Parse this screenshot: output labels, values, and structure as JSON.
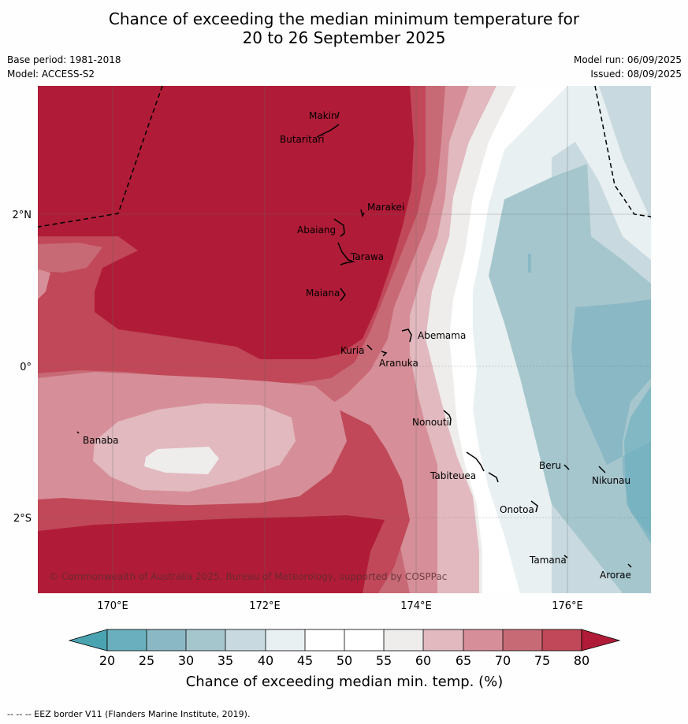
{
  "title": {
    "line1": "Chance of exceeding the median minimum temperature for",
    "line2": "20 to 26 September 2025"
  },
  "meta": {
    "base_period": "Base period: 1981-2018",
    "model": "Model: ACCESS-S2",
    "model_run": "Model run: 06/09/2025",
    "issued": "Issued: 08/09/2025"
  },
  "axes": {
    "lat_labels": [
      "2°N",
      "0°",
      "2°S"
    ],
    "lon_labels": [
      "170°E",
      "172°E",
      "174°E",
      "176°E"
    ]
  },
  "places": [
    "Makin",
    "Butaritari",
    "Marakei",
    "Abaiang",
    "Tarawa",
    "Maiana",
    "Abemama",
    "Kuria",
    "Aranuka",
    "Banaba",
    "Nonouti",
    "Tabiteuea",
    "Beru",
    "Nikunau",
    "Onotoa",
    "Tamana",
    "Arorae"
  ],
  "copyright": "© Commonwealth of Australia 2025, Bureau of Meteorology, supported by COSPPac",
  "colorbar": {
    "ticks": [
      "20",
      "25",
      "30",
      "35",
      "40",
      "45",
      "50",
      "55",
      "60",
      "65",
      "70",
      "75",
      "80"
    ],
    "colors": {
      "below_20": "#4aa3b0",
      "20_25": "#6aafbd",
      "25_30": "#8ab8c5",
      "30_35": "#a6c6cd",
      "35_40": "#c8dadf",
      "40_45": "#e9f0f2",
      "45_50": "#ffffff",
      "50_55": "#ffffff",
      "55_60": "#efecec",
      "60_65": "#e1b9bf",
      "65_70": "#d68f98",
      "70_75": "#c86a76",
      "75_80": "#c04858",
      "above_80": "#b01c37"
    },
    "label": "Chance of exceeding median min. temp. (%)"
  },
  "footer": "--  --  -- EEZ border V11 (Flanders Marine Institute, 2019)."
}
